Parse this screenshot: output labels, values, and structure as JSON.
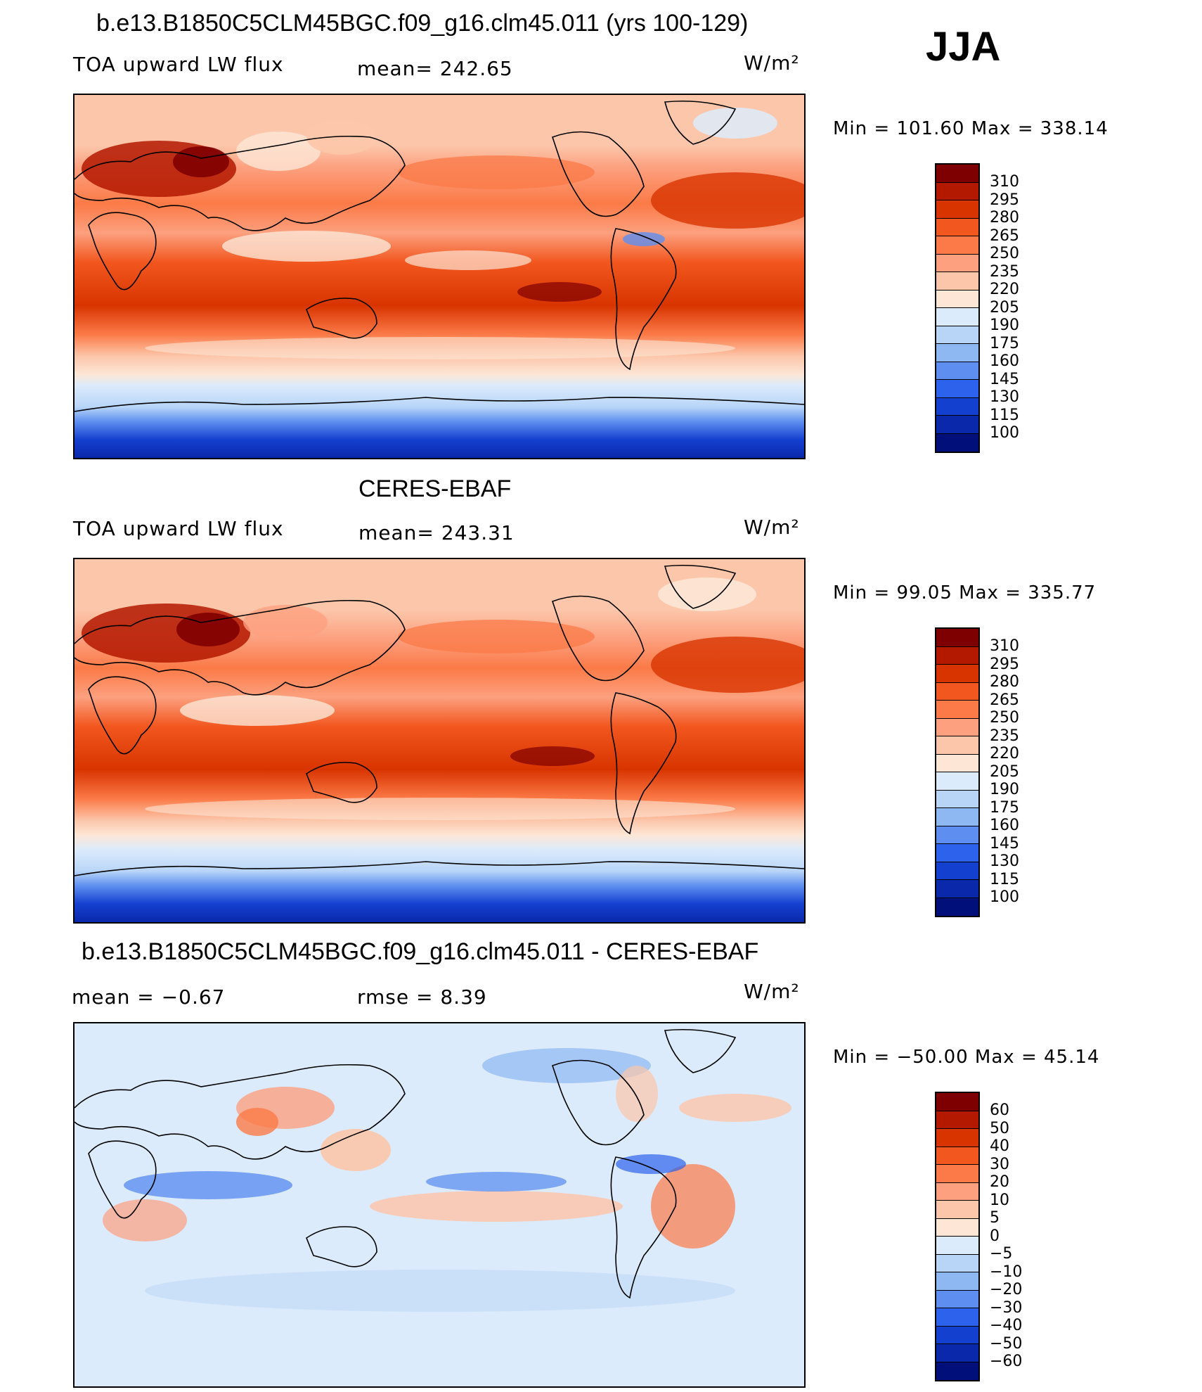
{
  "season": "JJA",
  "panels": [
    {
      "title": "b.e13.B1850C5CLM45BGC.f09_g16.clm45.011 (yrs 100-129)",
      "left_label": "TOA upward LW flux",
      "center_label": "mean=  242.65",
      "units": "W/m²",
      "minmax": "Min  =  101.60  Max  =  338.14",
      "colorbar_labels": [
        "310",
        "295",
        "280",
        "265",
        "250",
        "235",
        "220",
        "205",
        "190",
        "175",
        "160",
        "145",
        "130",
        "115",
        "100"
      ]
    },
    {
      "title": "CERES-EBAF",
      "left_label": "TOA upward LW flux",
      "center_label": "mean=  243.31",
      "units": "W/m²",
      "minmax": "Min  =    99.05  Max  =  335.77",
      "colorbar_labels": [
        "310",
        "295",
        "280",
        "265",
        "250",
        "235",
        "220",
        "205",
        "190",
        "175",
        "160",
        "145",
        "130",
        "115",
        "100"
      ]
    },
    {
      "title": "b.e13.B1850C5CLM45BGC.f09_g16.clm45.011 - CERES-EBAF",
      "left_label": "mean  =    −0.67",
      "center_label": "rmse  =      8.39",
      "units": "W/m²",
      "minmax": "Min  =  −50.00  Max  =    45.14",
      "colorbar_labels": [
        "60",
        "50",
        "40",
        "30",
        "20",
        "10",
        "5",
        "0",
        "−5",
        "−10",
        "−20",
        "−30",
        "−40",
        "−50",
        "−60"
      ]
    }
  ],
  "colors": {
    "flux_scale": [
      "#7f0000",
      "#b31800",
      "#d83400",
      "#f2571f",
      "#fb7a47",
      "#fca07f",
      "#fcc6aa",
      "#fde6d6",
      "#dcebfb",
      "#b8d5f8",
      "#8db8f2",
      "#5e8ff0",
      "#2c62ec",
      "#1440d0",
      "#0a28aa",
      "#000f7a"
    ],
    "diff_scale": [
      "#7f0000",
      "#b31800",
      "#d83400",
      "#f2571f",
      "#fb7a47",
      "#fca07f",
      "#fcc6aa",
      "#fde6d6",
      "#dcebfb",
      "#b8d5f8",
      "#8db8f2",
      "#5e8ff0",
      "#2c62ec",
      "#1440d0",
      "#0a28aa",
      "#000f7a"
    ]
  }
}
